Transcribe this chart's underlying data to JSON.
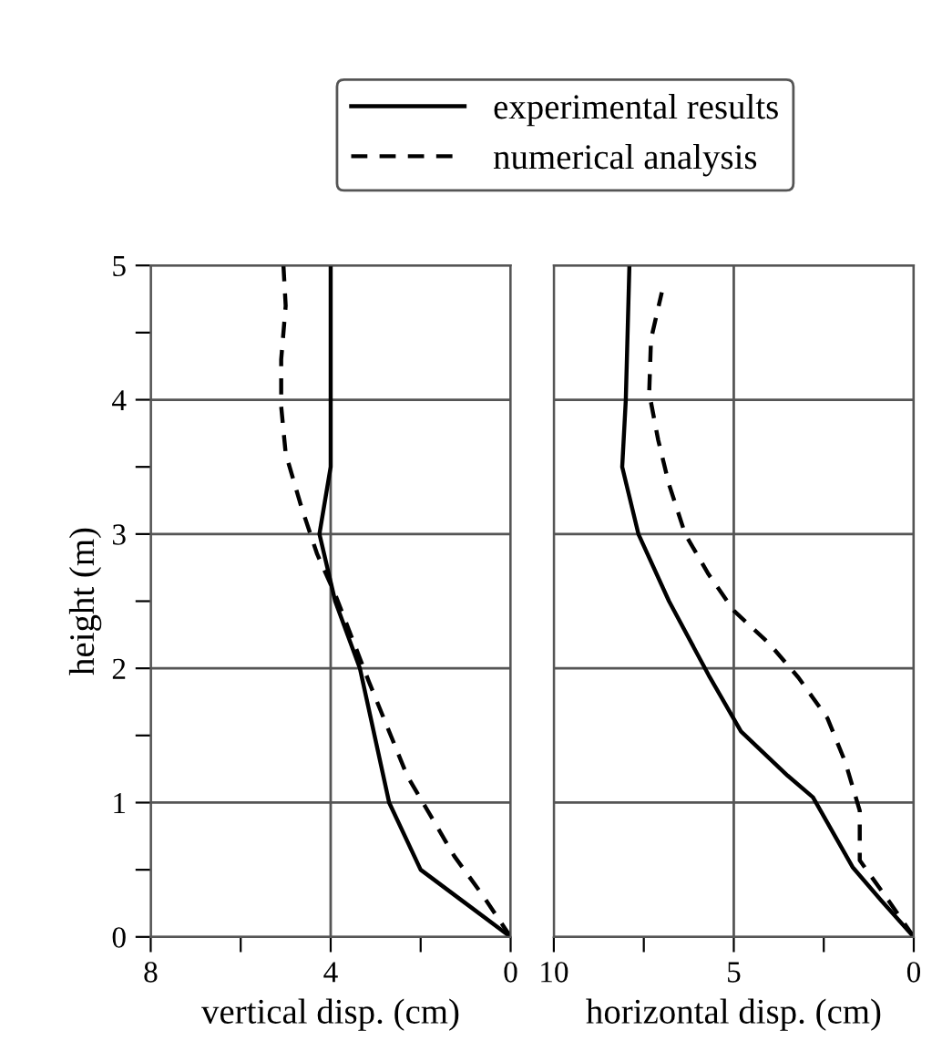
{
  "chart_data": [
    {
      "type": "line",
      "xlabel": "vertical disp. (cm)",
      "ylabel": "height (m)",
      "xlim": [
        8,
        0
      ],
      "ylim": [
        0,
        5
      ],
      "xticks": [
        8,
        {
          "value": 6,
          "label": null
        },
        4,
        {
          "value": 2,
          "label": null
        },
        0
      ],
      "yticks": [
        0,
        {
          "value": 0.5,
          "label": null
        },
        1,
        {
          "value": 1.5,
          "label": null
        },
        2,
        {
          "value": 2.5,
          "label": null
        },
        3,
        {
          "value": 3.5,
          "label": null
        },
        4,
        {
          "value": 4.5,
          "label": null
        },
        5
      ],
      "grid": true,
      "legend": "top",
      "series": [
        {
          "name": "experimental results",
          "color": "#000000",
          "line_style": "solid",
          "x": [
            0,
            2.0,
            2.7,
            3.35,
            3.9,
            4.25,
            4.0,
            4.0,
            4.0
          ],
          "values": [
            0,
            0.5,
            1.0,
            2.0,
            2.5,
            3.0,
            3.5,
            4.0,
            5.0
          ]
        },
        {
          "name": "numerical analysis",
          "color": "#000000",
          "line_style": "dashed",
          "x": [
            0,
            0.6,
            1.25,
            2.3,
            3.15,
            3.9,
            4.3,
            4.65,
            5.0,
            5.1,
            5.1,
            5.0,
            5.05
          ],
          "values": [
            0,
            0.3,
            0.6,
            1.2,
            1.9,
            2.55,
            2.85,
            3.2,
            3.6,
            3.95,
            4.3,
            4.7,
            5.0
          ]
        }
      ]
    },
    {
      "type": "line",
      "xlabel": "horizontal disp. (cm)",
      "xlim": [
        10,
        0
      ],
      "ylim": [
        0,
        5
      ],
      "tick_labels": "x",
      "xticks": [
        10,
        {
          "value": 7.5,
          "label": null
        },
        5,
        {
          "value": 2.5,
          "label": null
        },
        0
      ],
      "yticks": [
        0,
        1,
        2,
        3,
        4,
        5
      ],
      "grid": true,
      "series": [
        {
          "color": "#000000",
          "line_style": "solid",
          "x": [
            0,
            0.9,
            1.7,
            2.8,
            3.5,
            4.8,
            5.7,
            6.8,
            7.65,
            8.1,
            8.0,
            7.9
          ],
          "values": [
            0,
            0.27,
            0.52,
            1.04,
            1.2,
            1.53,
            1.95,
            2.5,
            3.0,
            3.5,
            4.0,
            5.0
          ]
        },
        {
          "color": "#000000",
          "line_style": "dashed",
          "x": [
            0,
            0.7,
            1.5,
            1.5,
            1.9,
            2.4,
            3.2,
            4.0,
            5.0,
            5.7,
            6.35,
            6.8,
            7.1,
            7.35,
            7.3,
            7.0
          ],
          "values": [
            0,
            0.27,
            0.57,
            0.94,
            1.3,
            1.63,
            1.93,
            2.18,
            2.43,
            2.7,
            3.0,
            3.37,
            3.7,
            4.05,
            4.45,
            4.8
          ]
        }
      ]
    }
  ]
}
